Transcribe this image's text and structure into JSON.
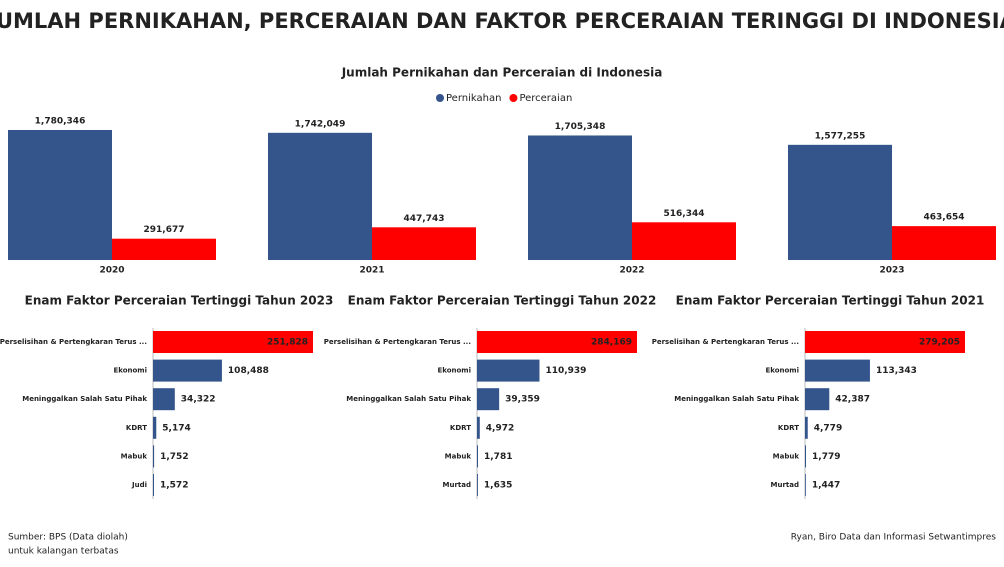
{
  "title": "JUMLAH PERNIKAHAN, PERCERAIAN DAN FAKTOR PERCERAIAN TERINGGI DI INDONESIA",
  "chart_data": [
    {
      "type": "bar",
      "title": "Jumlah Pernikahan dan Perceraian di Indonesia",
      "categories": [
        "2020",
        "2021",
        "2022",
        "2023"
      ],
      "series": [
        {
          "name": "Pernikahan",
          "color": "#34558b",
          "values": [
            1780346,
            1742049,
            1705348,
            1577255
          ],
          "value_labels": [
            "1,780,346",
            "1,742,049",
            "1,705,348",
            "1,577,255"
          ]
        },
        {
          "name": "Perceraian",
          "color": "#ff0000",
          "values": [
            291677,
            447743,
            516344,
            463654
          ],
          "value_labels": [
            "291,677",
            "447,743",
            "516,344",
            "463,654"
          ]
        }
      ],
      "legend": "top"
    },
    {
      "type": "hbar",
      "title": "Enam Faktor Perceraian Tertinggi Tahun 2023",
      "categories": [
        "Perselisihan & Pertengkaran Terus ...",
        "Ekonomi",
        "Meninggalkan Salah Satu Pihak",
        "KDRT",
        "Mabuk",
        "Judi"
      ],
      "values": [
        251828,
        108488,
        34322,
        5174,
        1752,
        1572
      ],
      "value_labels": [
        "251,828",
        "108,488",
        "34,322",
        "5,174",
        "1,752",
        "1,572"
      ],
      "colors": [
        "#ff0000",
        "#34558b",
        "#34558b",
        "#34558b",
        "#34558b",
        "#34558b"
      ]
    },
    {
      "type": "hbar",
      "title": "Enam Faktor Perceraian Tertinggi Tahun 2022",
      "categories": [
        "Perselisihan & Pertengkaran Terus ...",
        "Ekonomi",
        "Meninggalkan Salah Satu Pihak",
        "KDRT",
        "Mabuk",
        "Murtad"
      ],
      "values": [
        284169,
        110939,
        39359,
        4972,
        1781,
        1635
      ],
      "value_labels": [
        "284,169",
        "110,939",
        "39,359",
        "4,972",
        "1,781",
        "1,635"
      ],
      "colors": [
        "#ff0000",
        "#34558b",
        "#34558b",
        "#34558b",
        "#34558b",
        "#34558b"
      ]
    },
    {
      "type": "hbar",
      "title": "Enam Faktor Perceraian Tertinggi Tahun 2021",
      "categories": [
        "Perselisihan & Pertengkaran Terus ...",
        "Ekonomi",
        "Meninggalkan Salah Satu Pihak",
        "KDRT",
        "Mabuk",
        "Murtad"
      ],
      "values": [
        279205,
        113343,
        42387,
        4779,
        1779,
        1447
      ],
      "value_labels": [
        "279,205",
        "113,343",
        "42,387",
        "4,779",
        "1,779",
        "1,447"
      ],
      "colors": [
        "#ff0000",
        "#34558b",
        "#34558b",
        "#34558b",
        "#34558b",
        "#34558b"
      ]
    }
  ],
  "source": "Sumber: BPS (Data diolah)",
  "note": "untuk kalangan terbatas",
  "credit": "Ryan, Biro Data dan Informasi Setwantimpres"
}
